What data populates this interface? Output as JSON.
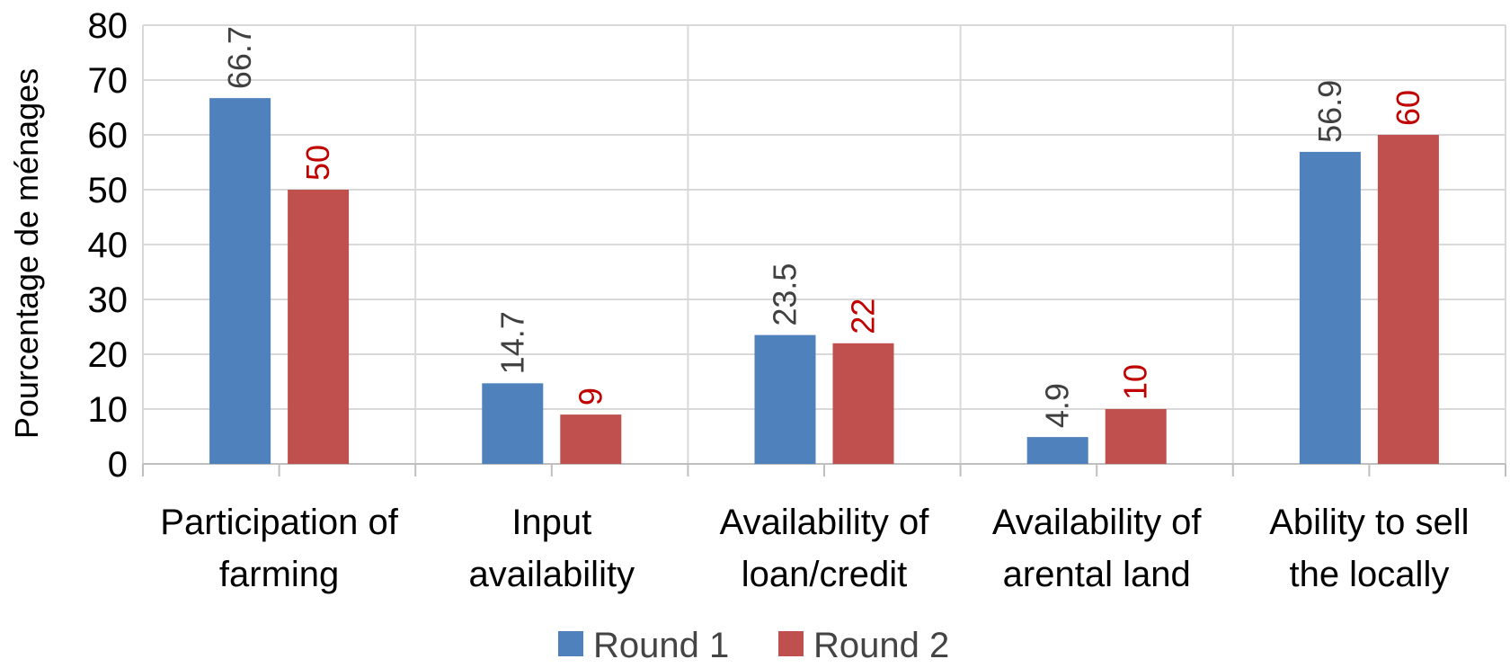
{
  "chart_data": {
    "type": "bar",
    "ylabel": "Pourcentage de ménages",
    "xlabel": "",
    "ylim": [
      0,
      80
    ],
    "yticks": [
      0,
      10,
      20,
      30,
      40,
      50,
      60,
      70,
      80
    ],
    "grid": true,
    "legend_position": "bottom",
    "categories": [
      [
        "Participation of",
        "farming"
      ],
      [
        "Input",
        "availability"
      ],
      [
        "Availability of",
        "loan/credit"
      ],
      [
        "Availability of",
        "arental land"
      ],
      [
        "Ability to sell",
        "the locally"
      ]
    ],
    "series": [
      {
        "name": "Round 1",
        "color": "#4f81bd",
        "label_color": "#404040",
        "values": [
          66.7,
          14.7,
          23.5,
          4.9,
          56.9
        ]
      },
      {
        "name": "Round 2",
        "color": "#c0504d",
        "label_color": "#c00000",
        "values": [
          50,
          9,
          22,
          10,
          60
        ]
      }
    ]
  }
}
